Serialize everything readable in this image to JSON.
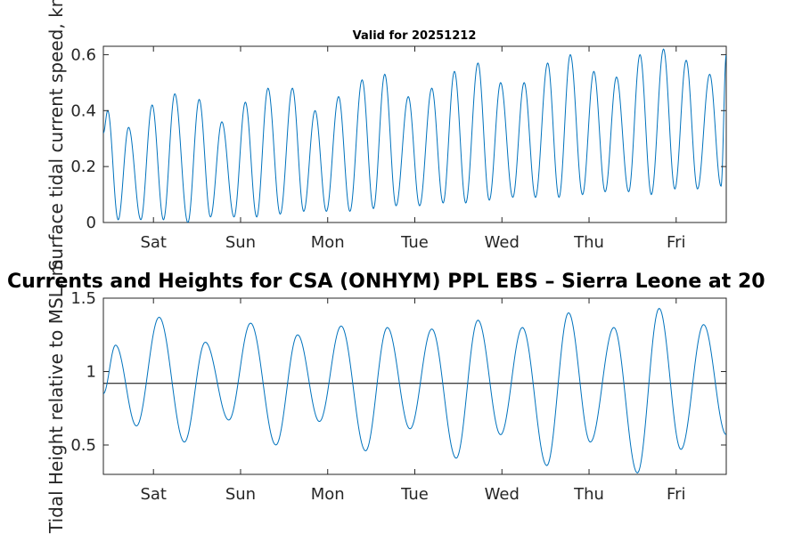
{
  "colors": {
    "series": "#0072bd",
    "axis": "#262626",
    "refline": "#000000",
    "background": "#ffffff"
  },
  "chart_data": [
    {
      "type": "line",
      "title": "Valid for 20251212",
      "xlabel": "",
      "ylabel": "Surface tidal current speed, kn",
      "ylim": [
        0,
        0.63
      ],
      "yticks": [
        0,
        0.2,
        0.4,
        0.6
      ],
      "ytick_labels": [
        "0",
        "0.2",
        "0.4",
        "0.6"
      ],
      "xlim": [
        0,
        7.15
      ],
      "xticks": [
        0.575,
        1.575,
        2.575,
        3.575,
        4.575,
        5.575,
        6.575
      ],
      "xtick_labels": [
        "Sat",
        "Sun",
        "Mon",
        "Tue",
        "Wed",
        "Thu",
        "Fri"
      ],
      "grid": false,
      "series": [
        {
          "name": "current speed",
          "points": [
            [
              0.0,
              0.32
            ],
            [
              0.05,
              0.4
            ],
            [
              0.17,
              0.01
            ],
            [
              0.29,
              0.34
            ],
            [
              0.43,
              0.01
            ],
            [
              0.56,
              0.42
            ],
            [
              0.69,
              0.01
            ],
            [
              0.82,
              0.46
            ],
            [
              0.97,
              0.0
            ],
            [
              1.1,
              0.44
            ],
            [
              1.23,
              0.02
            ],
            [
              1.36,
              0.36
            ],
            [
              1.5,
              0.02
            ],
            [
              1.63,
              0.43
            ],
            [
              1.76,
              0.02
            ],
            [
              1.89,
              0.48
            ],
            [
              2.03,
              0.03
            ],
            [
              2.17,
              0.48
            ],
            [
              2.3,
              0.04
            ],
            [
              2.43,
              0.4
            ],
            [
              2.56,
              0.04
            ],
            [
              2.7,
              0.45
            ],
            [
              2.83,
              0.04
            ],
            [
              2.97,
              0.51
            ],
            [
              3.1,
              0.05
            ],
            [
              3.23,
              0.53
            ],
            [
              3.36,
              0.06
            ],
            [
              3.5,
              0.45
            ],
            [
              3.63,
              0.06
            ],
            [
              3.77,
              0.48
            ],
            [
              3.9,
              0.07
            ],
            [
              4.03,
              0.54
            ],
            [
              4.16,
              0.07
            ],
            [
              4.3,
              0.57
            ],
            [
              4.43,
              0.08
            ],
            [
              4.56,
              0.5
            ],
            [
              4.7,
              0.09
            ],
            [
              4.83,
              0.5
            ],
            [
              4.96,
              0.09
            ],
            [
              5.1,
              0.57
            ],
            [
              5.23,
              0.09
            ],
            [
              5.36,
              0.6
            ],
            [
              5.5,
              0.1
            ],
            [
              5.63,
              0.54
            ],
            [
              5.76,
              0.11
            ],
            [
              5.89,
              0.52
            ],
            [
              6.03,
              0.11
            ],
            [
              6.16,
              0.6
            ],
            [
              6.29,
              0.1
            ],
            [
              6.43,
              0.62
            ],
            [
              6.56,
              0.12
            ],
            [
              6.69,
              0.58
            ],
            [
              6.82,
              0.12
            ],
            [
              6.96,
              0.53
            ],
            [
              7.09,
              0.13
            ],
            [
              7.15,
              0.6
            ]
          ]
        }
      ]
    },
    {
      "type": "line",
      "title": "Currents and Heights for CSA (ONHYM) PPL EBS  – Sierra Leone at 20",
      "xlabel": "",
      "ylabel": "Tidal Height relative to MSL, m",
      "ylim": [
        0.3,
        1.5
      ],
      "yticks": [
        0.5,
        1,
        1.5
      ],
      "ytick_labels": [
        "0.5",
        "1",
        "1.5"
      ],
      "xlim": [
        0,
        7.15
      ],
      "xticks": [
        0.575,
        1.575,
        2.575,
        3.575,
        4.575,
        5.575,
        6.575
      ],
      "xtick_labels": [
        "Sat",
        "Sun",
        "Mon",
        "Tue",
        "Wed",
        "Thu",
        "Fri"
      ],
      "grid": false,
      "reference_line": 0.92,
      "series": [
        {
          "name": "tidal height",
          "points": [
            [
              0.0,
              0.85
            ],
            [
              0.14,
              1.18
            ],
            [
              0.38,
              0.63
            ],
            [
              0.64,
              1.37
            ],
            [
              0.93,
              0.52
            ],
            [
              1.17,
              1.2
            ],
            [
              1.44,
              0.67
            ],
            [
              1.69,
              1.33
            ],
            [
              1.98,
              0.5
            ],
            [
              2.23,
              1.25
            ],
            [
              2.48,
              0.66
            ],
            [
              2.73,
              1.31
            ],
            [
              3.01,
              0.46
            ],
            [
              3.26,
              1.3
            ],
            [
              3.52,
              0.61
            ],
            [
              3.77,
              1.29
            ],
            [
              4.05,
              0.41
            ],
            [
              4.3,
              1.35
            ],
            [
              4.56,
              0.57
            ],
            [
              4.81,
              1.3
            ],
            [
              5.09,
              0.36
            ],
            [
              5.34,
              1.4
            ],
            [
              5.59,
              0.52
            ],
            [
              5.86,
              1.3
            ],
            [
              6.13,
              0.31
            ],
            [
              6.38,
              1.43
            ],
            [
              6.63,
              0.47
            ],
            [
              6.89,
              1.32
            ],
            [
              7.15,
              0.57
            ]
          ]
        }
      ]
    }
  ]
}
